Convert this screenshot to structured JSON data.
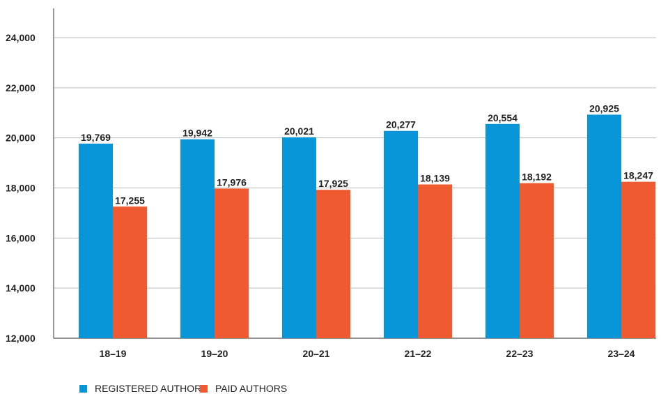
{
  "chart_data": {
    "type": "bar",
    "categories": [
      "18–19",
      "19–20",
      "20–21",
      "21–22",
      "22–23",
      "23–24"
    ],
    "series": [
      {
        "name": "REGISTERED AUTHORS",
        "color": "#0996d8",
        "values": [
          19769,
          19942,
          20021,
          20277,
          20554,
          20925
        ],
        "labels": [
          "19,769",
          "19,942",
          "20,021",
          "20,277",
          "20,554",
          "20,925"
        ]
      },
      {
        "name": "PAID AUTHORS",
        "color": "#f05a30",
        "values": [
          17255,
          17976,
          17925,
          18139,
          18192,
          18247
        ],
        "labels": [
          "17,255",
          "17,976",
          "17,925",
          "18,139",
          "18,192",
          "18,247"
        ]
      }
    ],
    "ylim": [
      12000,
      25000
    ],
    "yticks": [
      12000,
      14000,
      16000,
      18000,
      20000,
      22000,
      24000
    ],
    "ytick_labels": [
      "12,000",
      "14,000",
      "16,000",
      "18,000",
      "20,000",
      "22,000",
      "24,000"
    ],
    "grid": true,
    "legend_position": "bottom-left",
    "title": "",
    "xlabel": "",
    "ylabel": ""
  }
}
